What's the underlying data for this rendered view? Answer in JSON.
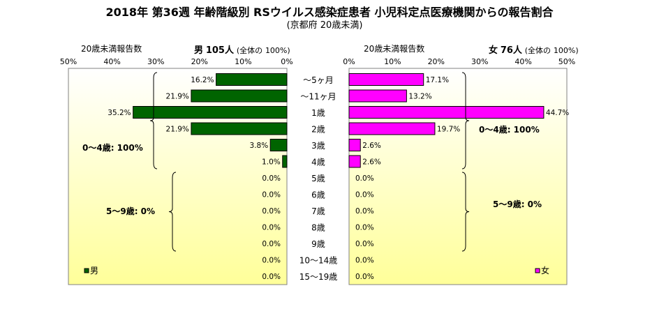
{
  "title": "2018年 第36週 年齢階級別 RSウイルス感染症患者 小児科定点医療機関からの報告割合",
  "subtitle": "(京都府 20歳未満)",
  "left_header": {
    "label": "20歳未満報告数",
    "sex": "男",
    "count": "105人",
    "note": "(全体の",
    "pct": "100%)"
  },
  "right_header": {
    "label": "20歳未満報告数",
    "sex": "女",
    "count": "76人",
    "note": "(全体の",
    "pct": "100%)"
  },
  "chart_data": {
    "type": "bar",
    "orientation": "horizontal-population-pyramid",
    "categories": [
      "～5ヶ月",
      "～11ヶ月",
      "1歳",
      "2歳",
      "3歳",
      "4歳",
      "5歳",
      "6歳",
      "7歳",
      "8歳",
      "9歳",
      "10～14歳",
      "15～19歳"
    ],
    "series": [
      {
        "name": "男",
        "color": "#006400",
        "values": [
          16.2,
          21.9,
          35.2,
          21.9,
          3.8,
          1.0,
          0.0,
          0.0,
          0.0,
          0.0,
          0.0,
          0.0,
          0.0
        ],
        "labels": [
          "16.2%",
          "21.9%",
          "35.2%",
          "21.9%",
          "3.8%",
          "1.0%",
          "0.0%",
          "0.0%",
          "0.0%",
          "0.0%",
          "0.0%",
          "0.0%",
          "0.0%"
        ]
      },
      {
        "name": "女",
        "color": "#FF00FF",
        "values": [
          17.1,
          13.2,
          44.7,
          19.7,
          2.6,
          2.6,
          0.0,
          0.0,
          0.0,
          0.0,
          0.0,
          0.0,
          0.0
        ],
        "labels": [
          "17.1%",
          "13.2%",
          "44.7%",
          "19.7%",
          "2.6%",
          "2.6%",
          "0.0%",
          "0.0%",
          "0.0%",
          "0.0%",
          "0.0%",
          "0.0%",
          "0.0%"
        ]
      }
    ],
    "xlim": [
      0,
      50
    ],
    "ticks": [
      "0%",
      "10%",
      "20%",
      "30%",
      "40%",
      "50%"
    ],
    "legend": {
      "placement": "bottom-left",
      "left": "男",
      "right": "女"
    },
    "annotations": {
      "left": [
        "0～4歳: 100%",
        "5～9歳: 0%"
      ],
      "right": [
        "0～4歳: 100%",
        "5～9歳: 0%"
      ]
    },
    "background": {
      "top": "#ffffff",
      "bottom": "#ffff99"
    }
  }
}
